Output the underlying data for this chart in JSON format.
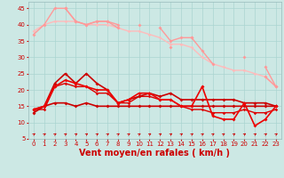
{
  "background_color": "#cce8e4",
  "grid_color": "#aad4d0",
  "xlabel": "Vent moyen/en rafales ( km/h )",
  "xlim": [
    -0.5,
    23.5
  ],
  "ylim": [
    5,
    47
  ],
  "yticks": [
    5,
    10,
    15,
    20,
    25,
    30,
    35,
    40,
    45
  ],
  "xticks": [
    0,
    1,
    2,
    3,
    4,
    5,
    6,
    7,
    8,
    9,
    10,
    11,
    12,
    13,
    14,
    15,
    16,
    17,
    18,
    19,
    20,
    21,
    22,
    23
  ],
  "series": [
    {
      "x": [
        0,
        1,
        2,
        3,
        4,
        5,
        6,
        7,
        8,
        9,
        10,
        11,
        12,
        13,
        14,
        15,
        16,
        17,
        18,
        19,
        20,
        21,
        22,
        23
      ],
      "y": [
        37,
        40,
        45,
        45,
        41,
        40,
        41,
        41,
        39,
        null,
        null,
        null,
        null,
        33,
        null,
        36,
        null,
        null,
        null,
        null,
        30,
        null,
        27,
        21
      ],
      "color": "#ff9999",
      "lw": 1.0,
      "marker": "D",
      "ms": 2.0,
      "zorder": 3
    },
    {
      "x": [
        0,
        1,
        2,
        3,
        4,
        5,
        6,
        7,
        8,
        9,
        10,
        11,
        12,
        13,
        14,
        15,
        16,
        17,
        18,
        19,
        20,
        21,
        22,
        23
      ],
      "y": [
        null,
        null,
        null,
        45,
        41,
        40,
        41,
        41,
        40,
        null,
        40,
        null,
        39,
        35,
        36,
        36,
        32,
        28,
        null,
        null,
        null,
        null,
        24,
        21
      ],
      "color": "#ff9999",
      "lw": 1.0,
      "marker": "D",
      "ms": 2.0,
      "zorder": 3
    },
    {
      "x": [
        0,
        1,
        2,
        3,
        4,
        5,
        6,
        7,
        8,
        9,
        10,
        11,
        12,
        13,
        14,
        15,
        16,
        17,
        18,
        19,
        20,
        21,
        22,
        23
      ],
      "y": [
        38,
        40,
        41,
        41,
        41,
        40,
        40,
        40,
        39,
        38,
        38,
        37,
        36,
        34,
        34,
        33,
        30,
        28,
        27,
        26,
        26,
        25,
        24,
        21
      ],
      "color": "#ffbbbb",
      "lw": 1.0,
      "marker": "D",
      "ms": 1.8,
      "zorder": 2
    },
    {
      "x": [
        0,
        1,
        2,
        3,
        4,
        5,
        6,
        7,
        8,
        9,
        10,
        11,
        12,
        13,
        14,
        15,
        16,
        17,
        18,
        19,
        20,
        21,
        22,
        23
      ],
      "y": [
        14,
        15,
        22,
        25,
        22,
        25,
        22,
        20,
        16,
        17,
        18,
        19,
        18,
        19,
        17,
        17,
        17,
        17,
        17,
        17,
        16,
        16,
        16,
        15
      ],
      "color": "#cc0000",
      "lw": 1.2,
      "marker": "D",
      "ms": 2.0,
      "zorder": 5
    },
    {
      "x": [
        0,
        1,
        2,
        3,
        4,
        5,
        6,
        7,
        8,
        9,
        10,
        11,
        12,
        13,
        14,
        15,
        16,
        17,
        18,
        19,
        20,
        21,
        22,
        23
      ],
      "y": [
        13,
        15,
        16,
        16,
        15,
        16,
        15,
        15,
        15,
        15,
        15,
        15,
        15,
        15,
        15,
        15,
        15,
        15,
        15,
        15,
        15,
        15,
        15,
        15
      ],
      "color": "#cc0000",
      "lw": 1.2,
      "marker": "D",
      "ms": 2.0,
      "zorder": 5
    },
    {
      "x": [
        0,
        1,
        2,
        3,
        4,
        5,
        6,
        7,
        8,
        9,
        10,
        11,
        12,
        13,
        14,
        15,
        16,
        17,
        18,
        19,
        20,
        21,
        22,
        23
      ],
      "y": [
        14,
        15,
        21,
        23,
        22,
        21,
        20,
        20,
        16,
        17,
        19,
        19,
        17,
        17,
        15,
        15,
        21,
        12,
        11,
        11,
        16,
        9,
        11,
        15
      ],
      "color": "#ee0000",
      "lw": 1.2,
      "marker": "D",
      "ms": 2.0,
      "zorder": 5
    },
    {
      "x": [
        0,
        1,
        2,
        3,
        4,
        5,
        6,
        7,
        8,
        9,
        10,
        11,
        12,
        13,
        14,
        15,
        16,
        17,
        18,
        19,
        20,
        21,
        22,
        23
      ],
      "y": [
        14,
        14,
        21,
        22,
        21,
        21,
        19,
        19,
        16,
        16,
        18,
        18,
        17,
        17,
        15,
        14,
        14,
        13,
        13,
        13,
        14,
        13,
        13,
        14
      ],
      "color": "#dd0000",
      "lw": 1.0,
      "marker": "D",
      "ms": 1.8,
      "zorder": 4
    }
  ],
  "arrow_color": "#cc0000",
  "xlabel_color": "#cc0000",
  "xlabel_fontsize": 7,
  "tick_fontsize": 5,
  "tick_color": "#cc0000"
}
